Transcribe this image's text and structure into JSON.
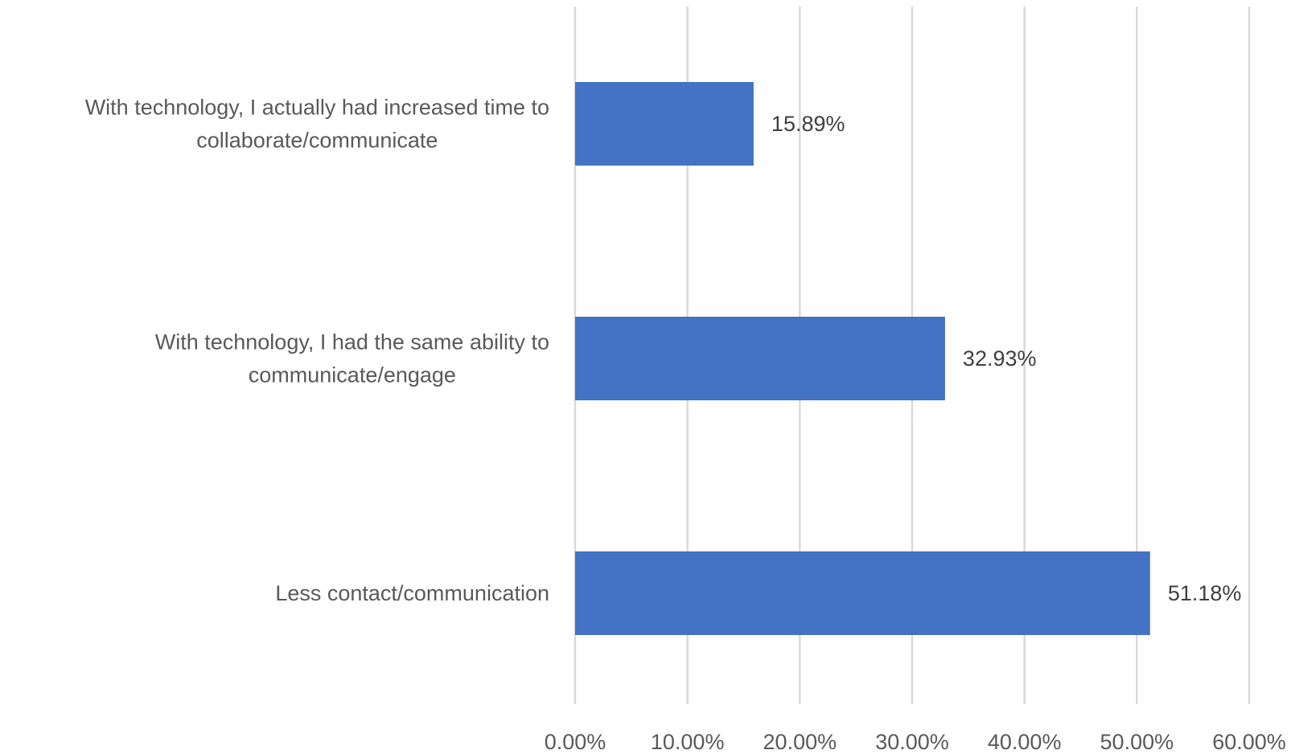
{
  "chart_data": {
    "type": "bar",
    "orientation": "horizontal",
    "categories": [
      [
        "With technology, I actually had increased time to",
        "collaborate/communicate"
      ],
      [
        "With technology, I had the same ability to",
        "communicate/engage"
      ],
      [
        "Less contact/communication"
      ]
    ],
    "values": [
      15.89,
      32.93,
      51.18
    ],
    "data_labels": [
      "15.89%",
      "32.93%",
      "51.18%"
    ],
    "xlim": [
      0,
      60
    ],
    "x_ticks": [
      0,
      10,
      20,
      30,
      40,
      50,
      60
    ],
    "x_tick_labels": [
      "0.00%",
      "10.00%",
      "20.00%",
      "30.00%",
      "40.00%",
      "50.00%",
      "60.00%"
    ],
    "grid": true,
    "bar_color": "#4472c4",
    "grid_color": "#d9d9d9",
    "label_color": "#595959"
  }
}
